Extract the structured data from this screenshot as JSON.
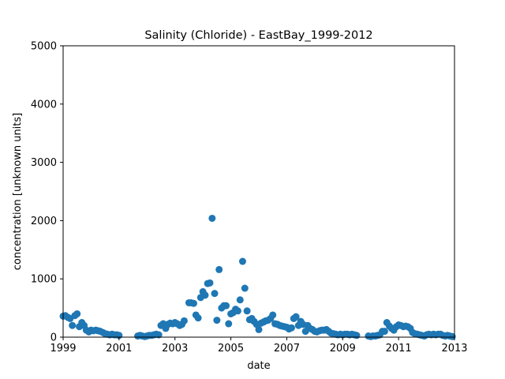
{
  "chart_data": {
    "type": "scatter",
    "title": "Salinity (Chloride) - EastBay_1999-2012",
    "xlabel": "date",
    "ylabel": "concentration [unknown units]",
    "xlim": [
      1999,
      2013
    ],
    "ylim": [
      0,
      5000
    ],
    "xticks": [
      1999,
      2001,
      2003,
      2005,
      2007,
      2009,
      2011,
      2013
    ],
    "xtick_labels": [
      "1999",
      "2001",
      "2003",
      "2005",
      "2007",
      "2009",
      "2011",
      "2013"
    ],
    "yticks": [
      0,
      1000,
      2000,
      3000,
      4000,
      5000
    ],
    "ytick_labels": [
      "0",
      "1000",
      "2000",
      "3000",
      "4000",
      "5000"
    ],
    "grid": false,
    "marker_color": "#1f77b4",
    "series": [
      {
        "x": [
          1999.0,
          1999.08,
          1999.17,
          1999.25,
          1999.33,
          1999.42,
          1999.5,
          1999.58,
          1999.67,
          1999.75,
          1999.83,
          1999.92,
          2000.0,
          2000.08,
          2000.17,
          2000.25,
          2000.33,
          2000.42,
          2000.5,
          2000.58,
          2000.67,
          2000.75,
          2000.83,
          2000.92,
          2001.0,
          2001.67,
          2001.75,
          2001.83,
          2001.92,
          2002.0,
          2002.08,
          2002.17,
          2002.25,
          2002.33,
          2002.42,
          2002.5,
          2002.58,
          2002.67,
          2002.75,
          2002.83,
          2002.92,
          2003.0,
          2003.08,
          2003.17,
          2003.25,
          2003.33,
          2003.5,
          2003.58,
          2003.67,
          2003.75,
          2003.83,
          2003.92,
          2004.0,
          2004.08,
          2004.17,
          2004.25,
          2004.33,
          2004.42,
          2004.5,
          2004.58,
          2004.67,
          2004.75,
          2004.83,
          2004.92,
          2005.0,
          2005.08,
          2005.17,
          2005.25,
          2005.33,
          2005.42,
          2005.5,
          2005.58,
          2005.67,
          2005.75,
          2005.83,
          2005.92,
          2006.0,
          2006.08,
          2006.17,
          2006.25,
          2006.33,
          2006.42,
          2006.5,
          2006.58,
          2006.67,
          2006.75,
          2006.83,
          2006.92,
          2007.0,
          2007.08,
          2007.17,
          2007.25,
          2007.33,
          2007.42,
          2007.5,
          2007.58,
          2007.67,
          2007.75,
          2007.83,
          2007.92,
          2008.0,
          2008.08,
          2008.17,
          2008.25,
          2008.33,
          2008.42,
          2008.5,
          2008.58,
          2008.67,
          2008.75,
          2008.83,
          2008.92,
          2009.0,
          2009.08,
          2009.17,
          2009.25,
          2009.33,
          2009.42,
          2009.5,
          2009.92,
          2010.0,
          2010.08,
          2010.17,
          2010.25,
          2010.33,
          2010.42,
          2010.5,
          2010.58,
          2010.67,
          2010.75,
          2010.83,
          2010.92,
          2011.0,
          2011.08,
          2011.17,
          2011.25,
          2011.33,
          2011.42,
          2011.5,
          2011.58,
          2011.67,
          2011.75,
          2011.83,
          2011.92,
          2012.0,
          2012.08,
          2012.17,
          2012.25,
          2012.33,
          2012.42,
          2012.5,
          2012.58,
          2012.67,
          2012.75,
          2012.83,
          2012.92
        ],
        "y": [
          360,
          370,
          340,
          320,
          200,
          370,
          400,
          180,
          250,
          200,
          120,
          90,
          120,
          110,
          120,
          110,
          100,
          80,
          60,
          50,
          40,
          50,
          40,
          40,
          30,
          20,
          30,
          20,
          10,
          20,
          30,
          30,
          40,
          50,
          40,
          200,
          230,
          150,
          220,
          240,
          230,
          250,
          230,
          200,
          220,
          280,
          590,
          590,
          580,
          380,
          330,
          680,
          780,
          720,
          920,
          930,
          2040,
          750,
          290,
          1160,
          500,
          540,
          540,
          230,
          400,
          420,
          480,
          450,
          640,
          1300,
          840,
          450,
          300,
          320,
          270,
          220,
          130,
          240,
          260,
          280,
          290,
          320,
          380,
          230,
          220,
          200,
          190,
          180,
          170,
          140,
          160,
          320,
          350,
          200,
          270,
          220,
          100,
          200,
          150,
          130,
          100,
          90,
          110,
          120,
          120,
          130,
          100,
          70,
          60,
          50,
          40,
          50,
          40,
          50,
          50,
          40,
          50,
          40,
          30,
          20,
          10,
          20,
          20,
          30,
          40,
          100,
          100,
          250,
          190,
          150,
          120,
          180,
          210,
          200,
          180,
          190,
          180,
          150,
          80,
          60,
          50,
          40,
          30,
          20,
          40,
          50,
          40,
          50,
          40,
          50,
          50,
          30,
          20,
          30,
          20,
          10
        ]
      }
    ]
  }
}
